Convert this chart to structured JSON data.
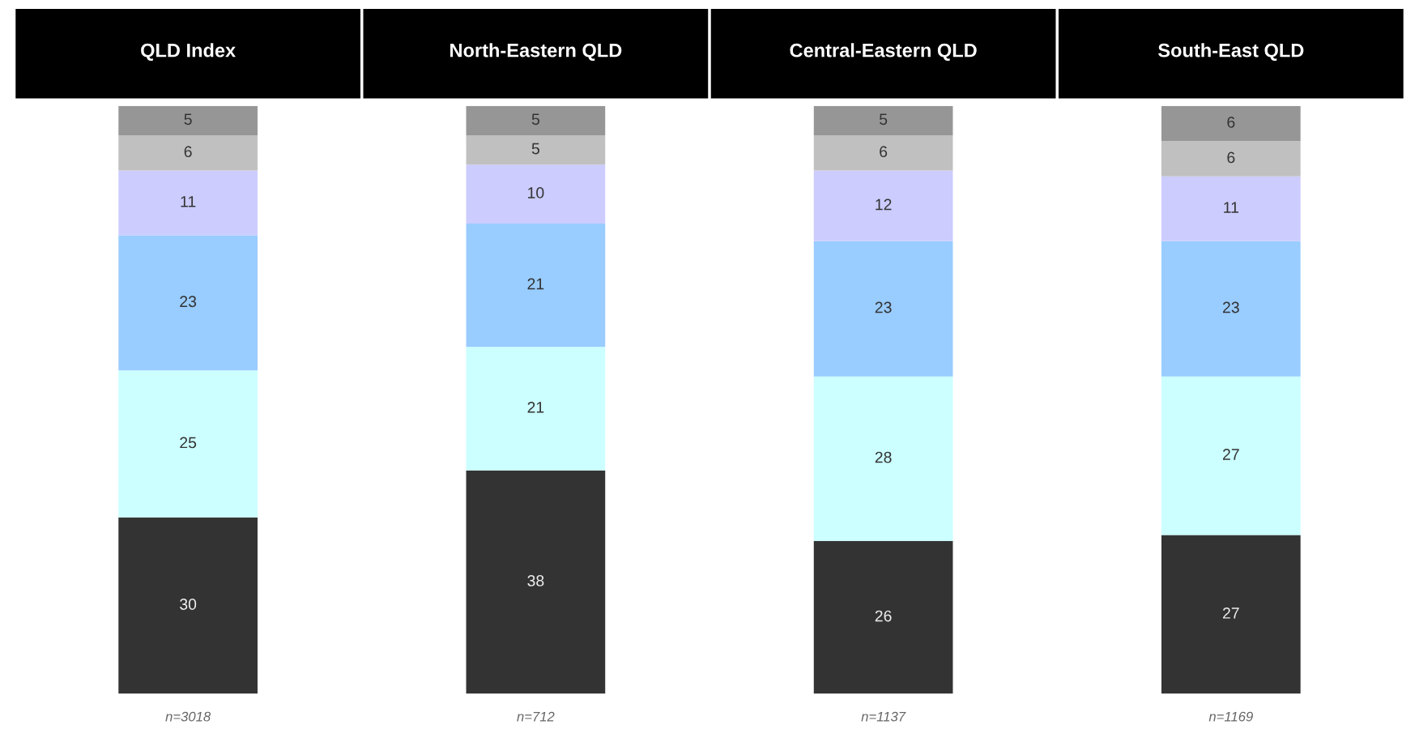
{
  "chart_data": {
    "type": "bar",
    "stacked": true,
    "categories": [
      "QLD Index",
      "North-Eastern QLD",
      "Central-Eastern QLD",
      "South-East QLD"
    ],
    "series": [
      {
        "color": "#333333",
        "values": [
          30,
          38,
          26,
          27
        ]
      },
      {
        "color": "#ccffff",
        "values": [
          25,
          21,
          28,
          27
        ]
      },
      {
        "color": "#99ccff",
        "values": [
          23,
          21,
          23,
          23
        ]
      },
      {
        "color": "#ccccff",
        "values": [
          11,
          10,
          12,
          11
        ]
      },
      {
        "color": "#c0c0c0",
        "values": [
          6,
          5,
          6,
          6
        ]
      },
      {
        "color": "#969696",
        "values": [
          5,
          5,
          5,
          6
        ]
      }
    ],
    "data_labels": true,
    "tick_labels": "x",
    "annotations": [
      "n=3018",
      "n=712",
      "n=1137",
      "n=1169"
    ]
  }
}
